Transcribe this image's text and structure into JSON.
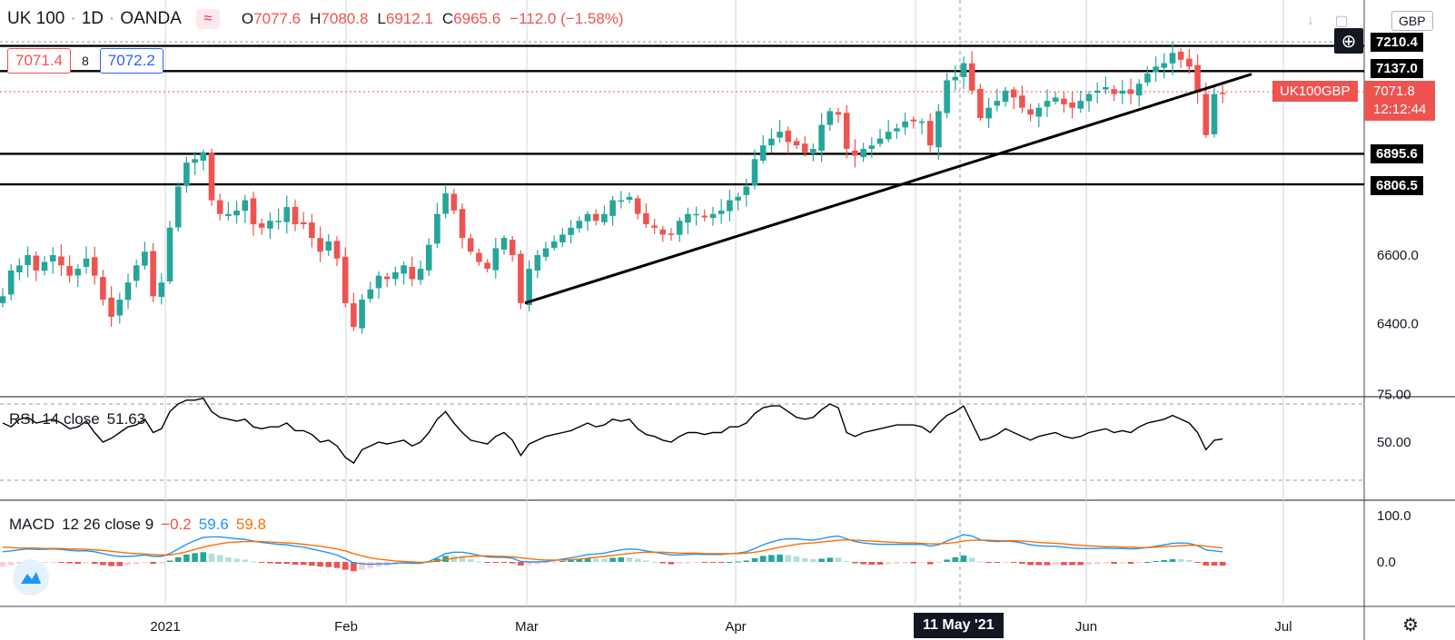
{
  "header": {
    "symbol": "UK 100",
    "interval": "1D",
    "source": "OANDA",
    "o_label": "O",
    "o_value": "7077.6",
    "h_label": "H",
    "h_value": "7080.8",
    "l_label": "L",
    "l_value": "6912.1",
    "c_label": "C",
    "c_value": "6965.6",
    "change": "−112.0 (−1.58%)"
  },
  "trade": {
    "sell": "7071.4",
    "spread": "8",
    "buy": "7072.2"
  },
  "toolbar": {
    "currency": "GBP"
  },
  "price_tags": {
    "symbol_tag": "UK100GBP",
    "last_price": "7071.8",
    "countdown": "12:12:44"
  },
  "rsi": {
    "name": "RSI",
    "params": "14 close",
    "value": "51.63"
  },
  "macd": {
    "name": "MACD",
    "params": "12 26 close 9",
    "hist": "−0.2",
    "macd": "59.6",
    "signal": "59.8"
  },
  "crosshair_date": "11 May '21",
  "colors": {
    "up": "#26a69a",
    "down": "#ef5350",
    "rsi": "#000000",
    "macd": "#2196f3",
    "signal": "#ff6d00"
  },
  "chart_data": {
    "type": "candlestick",
    "price_axis_labels": [
      "6400.0",
      "6600.0"
    ],
    "rsi_axis_labels": [
      "75.00",
      "50.00"
    ],
    "macd_axis_labels": [
      "100.0",
      "0.0"
    ],
    "x_tick_labels": [
      "2021",
      "Feb",
      "Mar",
      "Apr",
      "Jun",
      "Jul"
    ],
    "horizontal_levels": [
      7210.4,
      7137.0,
      6895.6,
      6806.5
    ],
    "horizontal_level_labels": [
      "7210.4",
      "7137.0",
      "6895.6",
      "6806.5"
    ],
    "trendline": {
      "start": {
        "date": "2021-02-26",
        "price": 6460
      },
      "end": {
        "date": "2021-06-24",
        "price": 7128
      }
    },
    "ohlc_approx": {
      "start_date": "2020-12-01",
      "closes": [
        6480,
        6555,
        6570,
        6600,
        6555,
        6580,
        6600,
        6570,
        6540,
        6560,
        6590,
        6540,
        6470,
        6420,
        6470,
        6520,
        6570,
        6610,
        6480,
        6520,
        6680,
        6800,
        6870,
        6880,
        6900,
        6760,
        6720,
        6720,
        6730,
        6760,
        6690,
        6680,
        6700,
        6700,
        6740,
        6690,
        6690,
        6650,
        6610,
        6640,
        6590,
        6460,
        6390,
        6470,
        6500,
        6540,
        6530,
        6550,
        6570,
        6530,
        6560,
        6630,
        6720,
        6780,
        6730,
        6650,
        6610,
        6580,
        6560,
        6620,
        6650,
        6600,
        6460,
        6560,
        6600,
        6620,
        6640,
        6660,
        6680,
        6700,
        6720,
        6700,
        6720,
        6760,
        6760,
        6770,
        6720,
        6690,
        6680,
        6660,
        6660,
        6700,
        6720,
        6720,
        6710,
        6720,
        6730,
        6760,
        6770,
        6800,
        6880,
        6920,
        6940,
        6960,
        6930,
        6920,
        6900,
        6910,
        6980,
        7020,
        7010,
        6910,
        6890,
        6910,
        6920,
        6940,
        6960,
        6970,
        6990,
        6990,
        6990,
        6920,
        7020,
        7110,
        7120,
        7160,
        7080,
        7000,
        7030,
        7050,
        7080,
        7060,
        7030,
        7010,
        7030,
        7050,
        7060,
        7040,
        7030,
        7050,
        7070,
        7080,
        7090,
        7070,
        7080,
        7070,
        7100,
        7130,
        7150,
        7160,
        7190,
        7170,
        7150,
        7075,
        6950,
        7070,
        7071.8
      ],
      "rsi": [
        60,
        58,
        62,
        63,
        60,
        61,
        62,
        60,
        57,
        58,
        61,
        55,
        50,
        52,
        55,
        58,
        59,
        62,
        55,
        57,
        66,
        70,
        72,
        72,
        73,
        66,
        63,
        62,
        61,
        62,
        58,
        57,
        58,
        58,
        60,
        56,
        56,
        54,
        50,
        51,
        48,
        42,
        39,
        46,
        48,
        50,
        49,
        50,
        51,
        48,
        50,
        55,
        62,
        66,
        60,
        55,
        51,
        50,
        49,
        53,
        55,
        51,
        43,
        49,
        51,
        53,
        54,
        55,
        56,
        58,
        60,
        58,
        59,
        62,
        61,
        62,
        57,
        54,
        53,
        51,
        50,
        53,
        55,
        55,
        54,
        55,
        55,
        58,
        58,
        60,
        65,
        68,
        69,
        69,
        66,
        63,
        62,
        63,
        67,
        70,
        68,
        55,
        53,
        55,
        56,
        57,
        58,
        59,
        59,
        59,
        58,
        55,
        60,
        64,
        66,
        69,
        60,
        51,
        52,
        54,
        57,
        55,
        53,
        51,
        53,
        54,
        55,
        53,
        52,
        53,
        55,
        56,
        57,
        55,
        56,
        55,
        58,
        60,
        61,
        62,
        64,
        62,
        60,
        55,
        46,
        51,
        51.63
      ],
      "macd": [
        22,
        24,
        26,
        28,
        27,
        27,
        28,
        27,
        25,
        24,
        24,
        22,
        18,
        14,
        12,
        12,
        13,
        15,
        12,
        12,
        18,
        28,
        38,
        46,
        53,
        54,
        54,
        52,
        50,
        49,
        45,
        42,
        40,
        38,
        37,
        34,
        32,
        28,
        24,
        20,
        15,
        7,
        -2,
        -4,
        -5,
        -4,
        -4,
        -3,
        -2,
        -3,
        -3,
        1,
        9,
        18,
        21,
        21,
        18,
        14,
        11,
        10,
        10,
        8,
        1,
        0,
        0,
        1,
        3,
        6,
        9,
        12,
        16,
        17,
        19,
        23,
        26,
        28,
        27,
        24,
        21,
        18,
        15,
        15,
        16,
        17,
        16,
        16,
        16,
        18,
        19,
        22,
        29,
        37,
        43,
        48,
        50,
        50,
        48,
        47,
        50,
        54,
        56,
        50,
        44,
        41,
        39,
        38,
        38,
        38,
        38,
        38,
        38,
        34,
        37,
        45,
        52,
        59,
        56,
        48,
        45,
        44,
        45,
        44,
        41,
        37,
        35,
        34,
        34,
        32,
        30,
        29,
        29,
        29,
        30,
        29,
        29,
        28,
        29,
        31,
        34,
        37,
        40,
        41,
        40,
        35,
        26,
        24,
        22
      ],
      "signal": [
        32,
        31,
        30,
        30,
        30,
        29,
        29,
        29,
        28,
        28,
        27,
        26,
        25,
        23,
        21,
        19,
        18,
        17,
        16,
        15,
        15,
        18,
        22,
        27,
        32,
        36,
        39,
        42,
        43,
        44,
        44,
        44,
        43,
        42,
        41,
        40,
        38,
        36,
        34,
        31,
        28,
        24,
        18,
        13,
        9,
        6,
        4,
        2,
        1,
        0,
        -1,
        0,
        2,
        5,
        8,
        11,
        12,
        13,
        13,
        12,
        12,
        11,
        9,
        7,
        5,
        4,
        4,
        4,
        5,
        6,
        8,
        10,
        12,
        14,
        16,
        18,
        20,
        21,
        21,
        21,
        20,
        19,
        19,
        19,
        18,
        18,
        18,
        18,
        18,
        19,
        21,
        24,
        28,
        32,
        35,
        38,
        40,
        41,
        43,
        45,
        47,
        48,
        47,
        46,
        45,
        44,
        43,
        42,
        41,
        41,
        40,
        39,
        39,
        40,
        42,
        45,
        47,
        47,
        47,
        46,
        46,
        46,
        45,
        44,
        42,
        41,
        40,
        39,
        37,
        36,
        35,
        34,
        33,
        33,
        32,
        32,
        31,
        31,
        32,
        33,
        34,
        35,
        36,
        36,
        34,
        32,
        30
      ]
    }
  }
}
